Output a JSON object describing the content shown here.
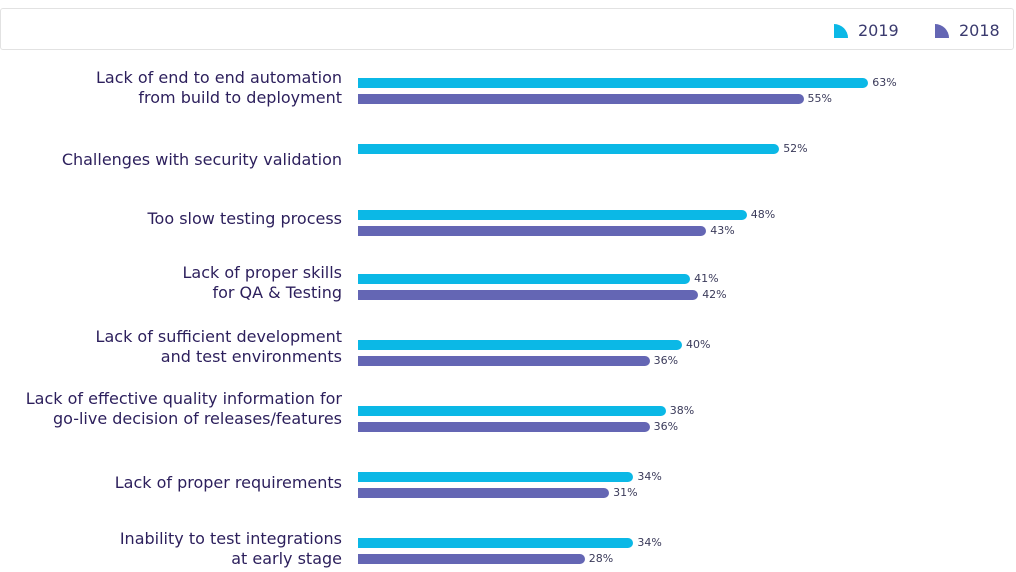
{
  "chart_data": {
    "type": "bar",
    "orientation": "horizontal",
    "categories": [
      "Lack of end to end automation\nfrom build to deployment",
      "Challenges with security validation",
      "Too slow testing process",
      "Lack of proper skills\nfor QA & Testing",
      "Lack of sufficient development\nand test environments",
      "Lack of effective quality information for\ngo-live decision of releases/features",
      "Lack of proper requirements",
      "Inability to test integrations\nat early stage"
    ],
    "series": [
      {
        "name": "2019",
        "color": "#0bb8e6",
        "values": [
          63,
          52,
          48,
          41,
          40,
          38,
          34,
          34
        ],
        "labels": [
          "63%",
          "52%",
          "48%",
          "41%",
          "40%",
          "38%",
          "34%",
          "34%"
        ]
      },
      {
        "name": "2018",
        "color": "#6466b4",
        "values": [
          55,
          null,
          43,
          42,
          36,
          36,
          31,
          28
        ],
        "labels": [
          "55%",
          "",
          "43%",
          "42%",
          "36%",
          "36%",
          "31%",
          "28%"
        ]
      }
    ],
    "legend": {
      "position": "top-right"
    }
  }
}
